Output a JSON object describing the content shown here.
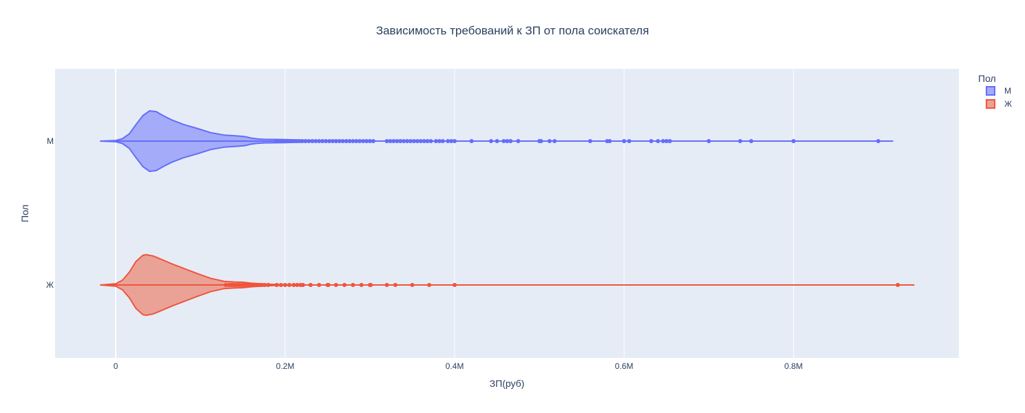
{
  "chart_data": {
    "type": "violin",
    "orientation": "horizontal",
    "title": "Зависимость требований к ЗП от пола соискателя",
    "xlabel": "ЗП(руб)",
    "ylabel": "Пол",
    "xlim": [
      -70000,
      1000000
    ],
    "x_ticks": [
      {
        "value": 0,
        "label": "0"
      },
      {
        "value": 200000,
        "label": "0.2M"
      },
      {
        "value": 400000,
        "label": "0.4M"
      },
      {
        "value": 600000,
        "label": "0.6M"
      },
      {
        "value": 800000,
        "label": "0.8M"
      }
    ],
    "categories": [
      "М",
      "Ж"
    ],
    "grid": true,
    "legend": {
      "title": "Пол",
      "position": "top-right"
    },
    "series": [
      {
        "name": "М",
        "category": "М",
        "color": "#636efa",
        "fill": "#a4abf8",
        "range": [
          -18000,
          917000
        ],
        "density": [
          [
            -18000,
            0.0
          ],
          [
            0,
            0.02
          ],
          [
            8000,
            0.08
          ],
          [
            16000,
            0.24
          ],
          [
            24000,
            0.55
          ],
          [
            32000,
            0.84
          ],
          [
            40000,
            1.0
          ],
          [
            48000,
            0.97
          ],
          [
            56000,
            0.84
          ],
          [
            66000,
            0.7
          ],
          [
            80000,
            0.55
          ],
          [
            96000,
            0.42
          ],
          [
            112000,
            0.28
          ],
          [
            128000,
            0.2
          ],
          [
            144000,
            0.17
          ],
          [
            152000,
            0.15
          ],
          [
            160000,
            0.1
          ],
          [
            168000,
            0.07
          ],
          [
            176000,
            0.06
          ],
          [
            200000,
            0.05
          ],
          [
            230000,
            0.02
          ],
          [
            260000,
            0.0
          ],
          [
            917000,
            0.0
          ]
        ],
        "outliers": [
          189000,
          193000,
          196000,
          199000,
          202000,
          205000,
          208000,
          211000,
          214000,
          217000,
          220000,
          224000,
          228000,
          232000,
          236000,
          240000,
          244000,
          248000,
          252000,
          256000,
          260000,
          264000,
          268000,
          272000,
          276000,
          280000,
          284000,
          288000,
          292000,
          296000,
          300000,
          304000,
          320000,
          324000,
          328000,
          332000,
          336000,
          340000,
          344000,
          348000,
          352000,
          356000,
          360000,
          364000,
          368000,
          372000,
          378000,
          382000,
          386000,
          392000,
          396000,
          400000,
          420000,
          443000,
          450000,
          458000,
          462000,
          466000,
          475000,
          500000,
          502000,
          512000,
          518000,
          560000,
          580000,
          583000,
          600000,
          606000,
          632000,
          640000,
          646000,
          650000,
          654000,
          700000,
          737000,
          750000,
          800000,
          900000
        ]
      },
      {
        "name": "Ж",
        "category": "Ж",
        "color": "#ef553b",
        "fill": "#eaa296",
        "range": [
          -18000,
          942000
        ],
        "density": [
          [
            -18000,
            0.0
          ],
          [
            0,
            0.04
          ],
          [
            8000,
            0.16
          ],
          [
            16000,
            0.42
          ],
          [
            24000,
            0.78
          ],
          [
            32000,
            0.98
          ],
          [
            36000,
            1.0
          ],
          [
            44000,
            0.96
          ],
          [
            56000,
            0.82
          ],
          [
            66000,
            0.7
          ],
          [
            80000,
            0.55
          ],
          [
            96000,
            0.38
          ],
          [
            112000,
            0.22
          ],
          [
            128000,
            0.12
          ],
          [
            140000,
            0.1
          ],
          [
            150000,
            0.09
          ],
          [
            160000,
            0.06
          ],
          [
            176000,
            0.03
          ],
          [
            200000,
            0.01
          ],
          [
            220000,
            0.0
          ],
          [
            942000,
            0.0
          ]
        ],
        "outliers": [
          130000,
          134000,
          137000,
          140000,
          143000,
          146000,
          149000,
          152000,
          155000,
          158000,
          161000,
          164000,
          167000,
          170000,
          173000,
          176000,
          180000,
          190000,
          195000,
          200000,
          205000,
          210000,
          214000,
          218000,
          221000,
          230000,
          240000,
          250000,
          251000,
          260000,
          270000,
          280000,
          290000,
          300000,
          301000,
          320000,
          330000,
          350000,
          370000,
          400000,
          923000
        ]
      }
    ]
  }
}
